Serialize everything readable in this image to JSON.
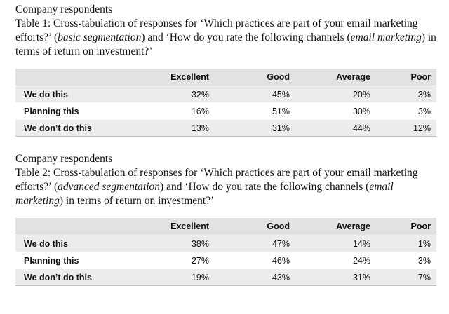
{
  "tables": [
    {
      "header_line": "Company respondents",
      "caption_parts": [
        {
          "text": "Table 1: Cross-tabulation of responses for ‘Which practices are part of your email marketing efforts?’ (",
          "italic": false
        },
        {
          "text": "basic segmentation",
          "italic": true
        },
        {
          "text": ") and ‘How do you rate the following channels (",
          "italic": false
        },
        {
          "text": "email marketing",
          "italic": true
        },
        {
          "text": ") in terms of return on investment?’",
          "italic": false
        }
      ],
      "columns": [
        "Excellent",
        "Good",
        "Average",
        "Poor"
      ],
      "rows": [
        {
          "label": "We do this",
          "values": [
            "32%",
            "45%",
            "20%",
            "3%"
          ]
        },
        {
          "label": "Planning this",
          "values": [
            "16%",
            "51%",
            "30%",
            "3%"
          ]
        },
        {
          "label": "We don’t do this",
          "values": [
            "13%",
            "31%",
            "44%",
            "12%"
          ]
        }
      ]
    },
    {
      "header_line": "Company respondents",
      "caption_parts": [
        {
          "text": "Table 2: Cross-tabulation of responses for ‘Which practices are part of your email marketing efforts?’ (",
          "italic": false
        },
        {
          "text": "advanced segmentation",
          "italic": true
        },
        {
          "text": ") and ‘How do you rate the following channels (",
          "italic": false
        },
        {
          "text": "email marketing",
          "italic": true
        },
        {
          "text": ") in terms of return on investment?’",
          "italic": false
        }
      ],
      "columns": [
        "Excellent",
        "Good",
        "Average",
        "Poor"
      ],
      "rows": [
        {
          "label": "We do this",
          "values": [
            "38%",
            "47%",
            "14%",
            "1%"
          ]
        },
        {
          "label": "Planning this",
          "values": [
            "27%",
            "46%",
            "24%",
            "3%"
          ]
        },
        {
          "label": "We don’t do this",
          "values": [
            "19%",
            "43%",
            "31%",
            "7%"
          ]
        }
      ]
    }
  ]
}
